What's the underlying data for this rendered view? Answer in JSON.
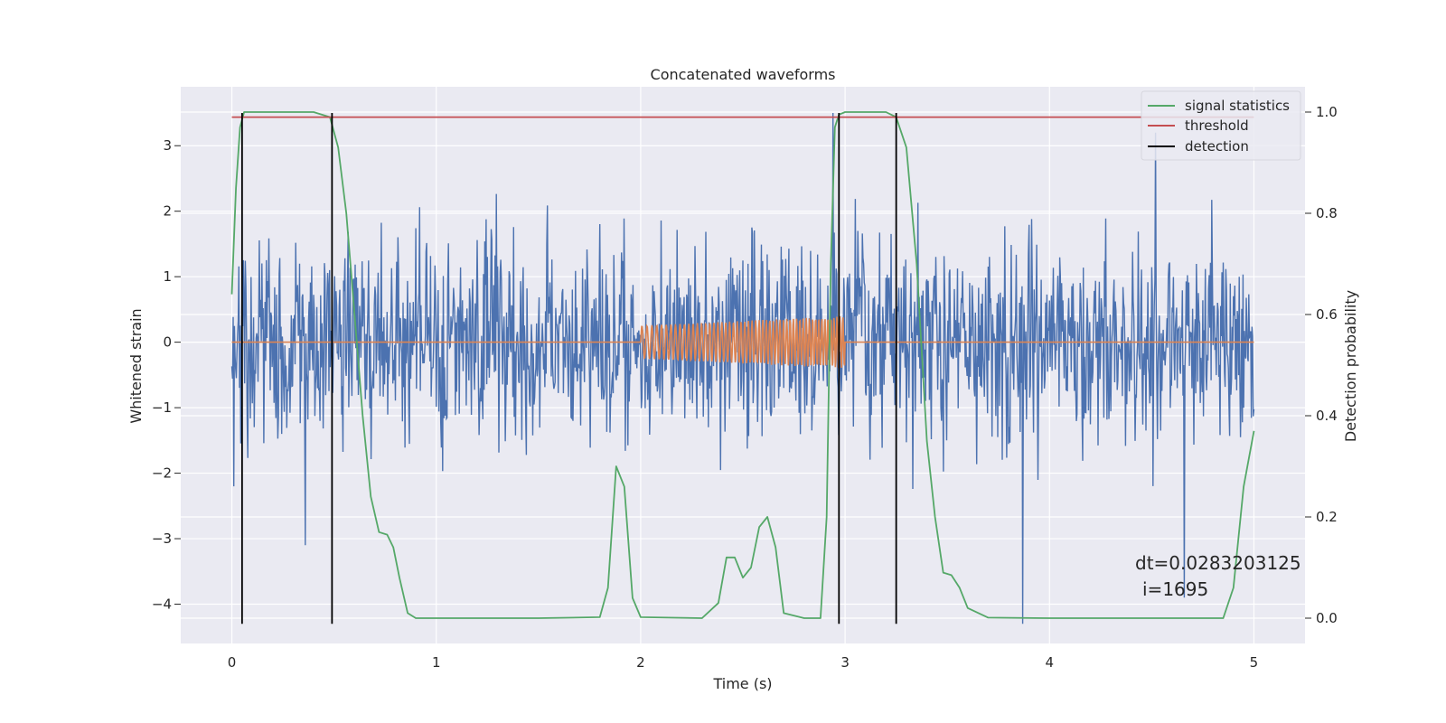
{
  "chart_data": {
    "type": "line",
    "title": "Concatenated waveforms",
    "xlabel": "Time (s)",
    "ylabel": "Whitened strain",
    "y2label": "Detection probability",
    "xlim": [
      -0.25,
      5.25
    ],
    "ylim": [
      -4.6,
      3.9
    ],
    "y2lim": [
      -0.05,
      1.05
    ],
    "xticks": [
      0,
      1,
      2,
      3,
      4,
      5
    ],
    "yticks": [
      -4,
      -3,
      -2,
      -1,
      0,
      1,
      2,
      3
    ],
    "y2ticks": [
      0.0,
      0.2,
      0.4,
      0.6,
      0.8,
      1.0
    ],
    "xtick_labels": [
      "0",
      "1",
      "2",
      "3",
      "4",
      "5"
    ],
    "ytick_labels": [
      "−4",
      "−3",
      "−2",
      "−1",
      "0",
      "1",
      "2",
      "3"
    ],
    "y2tick_labels": [
      "0.0",
      "0.2",
      "0.4",
      "0.6",
      "0.8",
      "1.0"
    ],
    "grid": true,
    "legend_position": "top-right",
    "noise": {
      "color": "#4c72b0",
      "x_range": [
        0,
        5
      ],
      "typical_range": [
        -2.0,
        2.4
      ],
      "extremes": [
        {
          "x": 0.01,
          "y": -2.2
        },
        {
          "x": 0.36,
          "y": -3.1
        },
        {
          "x": 2.94,
          "y": 3.5
        },
        {
          "x": 3.87,
          "y": -4.3
        },
        {
          "x": 4.66,
          "y": -3.9
        },
        {
          "x": 4.52,
          "y": 3.2
        }
      ]
    },
    "injected_signal": {
      "color": "#dd8452",
      "x_range": [
        2.0,
        3.0
      ],
      "amplitude_start": 0.25,
      "amplitude_end": 0.4
    },
    "signal_statistics": {
      "name": "signal statistics",
      "axis": "right",
      "color": "#55a868",
      "x": [
        0.0,
        0.02,
        0.04,
        0.06,
        0.1,
        0.2,
        0.4,
        0.48,
        0.52,
        0.56,
        0.6,
        0.64,
        0.68,
        0.72,
        0.76,
        0.79,
        0.82,
        0.86,
        0.9,
        1.0,
        1.5,
        1.8,
        1.84,
        1.88,
        1.92,
        1.96,
        2.0,
        2.3,
        2.38,
        2.42,
        2.46,
        2.5,
        2.54,
        2.58,
        2.62,
        2.66,
        2.7,
        2.8,
        2.88,
        2.91,
        2.93,
        2.95,
        2.97,
        3.0,
        3.1,
        3.2,
        3.25,
        3.3,
        3.35,
        3.4,
        3.44,
        3.48,
        3.52,
        3.56,
        3.6,
        3.7,
        4.0,
        4.5,
        4.85,
        4.9,
        4.95,
        5.0
      ],
      "y": [
        0.64,
        0.85,
        0.97,
        1.0,
        1.0,
        1.0,
        1.0,
        0.99,
        0.93,
        0.8,
        0.6,
        0.4,
        0.24,
        0.17,
        0.165,
        0.14,
        0.08,
        0.01,
        0.0,
        0.0,
        0.0,
        0.002,
        0.06,
        0.3,
        0.26,
        0.04,
        0.002,
        0.0,
        0.03,
        0.12,
        0.12,
        0.08,
        0.1,
        0.18,
        0.2,
        0.14,
        0.01,
        0.0,
        0.0,
        0.2,
        0.7,
        0.97,
        0.995,
        1.0,
        1.0,
        1.0,
        0.99,
        0.93,
        0.7,
        0.35,
        0.2,
        0.09,
        0.085,
        0.06,
        0.02,
        0.001,
        0.0,
        0.0,
        0.0,
        0.06,
        0.26,
        0.37
      ]
    },
    "threshold": {
      "name": "threshold",
      "axis": "right",
      "color": "#c44e52",
      "value": 0.99,
      "x_range": [
        0,
        5
      ]
    },
    "detection": {
      "name": "detection",
      "color": "#000000",
      "x": [
        0.05,
        0.49,
        2.97,
        3.25
      ],
      "y_range": [
        -4.3,
        3.5
      ]
    },
    "annotations": [
      "dt=0.0283203125",
      "i=1695"
    ]
  }
}
